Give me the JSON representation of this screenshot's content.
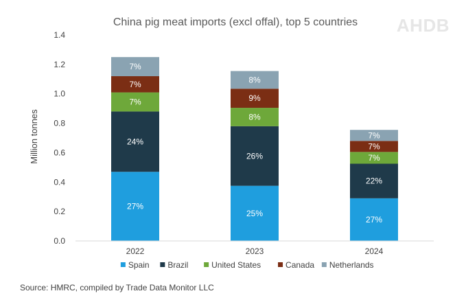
{
  "logo_text": "AHDB",
  "source_text": "Source: HMRC, compiled by Trade Data Monitor LLC",
  "chart_data": {
    "type": "bar",
    "stacked": true,
    "title": "China pig meat imports (excl offal), top 5 countries",
    "xlabel": "",
    "ylabel": "Million tonnes",
    "ylim": [
      0,
      1.4
    ],
    "yticks": [
      0.0,
      0.2,
      0.4,
      0.6,
      0.8,
      1.0,
      1.2,
      1.4
    ],
    "ytick_labels": [
      "0.0",
      "0.2",
      "0.4",
      "0.6",
      "0.8",
      "1.0",
      "1.2",
      "1.4"
    ],
    "grid": false,
    "legend_position": "bottom",
    "categories": [
      "2022",
      "2023",
      "2024"
    ],
    "series": [
      {
        "name": "Spain",
        "color": "#1f9ede",
        "values": [
          0.47,
          0.375,
          0.29
        ],
        "labels": [
          "27%",
          "25%",
          "27%"
        ]
      },
      {
        "name": "Brazil",
        "color": "#1f3a4a",
        "values": [
          0.41,
          0.405,
          0.235
        ],
        "labels": [
          "24%",
          "26%",
          "22%"
        ]
      },
      {
        "name": "United States",
        "color": "#6ea83a",
        "values": [
          0.13,
          0.125,
          0.08
        ],
        "labels": [
          "7%",
          "8%",
          "7%"
        ]
      },
      {
        "name": "Canada",
        "color": "#7b2e14",
        "values": [
          0.11,
          0.13,
          0.075
        ],
        "labels": [
          "7%",
          "9%",
          "7%"
        ]
      },
      {
        "name": "Netherlands",
        "color": "#8aa3b2",
        "values": [
          0.13,
          0.12,
          0.075
        ],
        "labels": [
          "7%",
          "8%",
          "7%"
        ]
      }
    ]
  }
}
